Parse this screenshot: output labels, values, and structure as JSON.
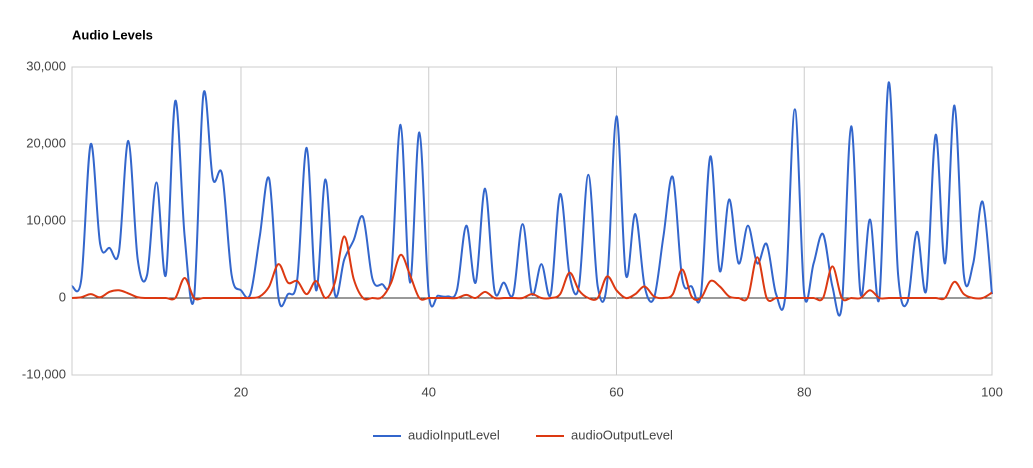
{
  "chart_data": {
    "type": "line",
    "title": "Audio Levels",
    "x": [
      2,
      3,
      4,
      5,
      6,
      7,
      8,
      9,
      10,
      11,
      12,
      13,
      14,
      15,
      16,
      17,
      18,
      19,
      20,
      21,
      22,
      23,
      24,
      25,
      26,
      27,
      28,
      29,
      30,
      31,
      32,
      33,
      34,
      35,
      36,
      37,
      38,
      39,
      40,
      41,
      42,
      43,
      44,
      45,
      46,
      47,
      48,
      49,
      50,
      51,
      52,
      53,
      54,
      55,
      56,
      57,
      58,
      59,
      60,
      61,
      62,
      63,
      64,
      65,
      66,
      67,
      68,
      69,
      70,
      71,
      72,
      73,
      74,
      75,
      76,
      77,
      78,
      79,
      80,
      81,
      82,
      83,
      84,
      85,
      86,
      87,
      88,
      89,
      90,
      91,
      92,
      93,
      94,
      95,
      96,
      97,
      98,
      99,
      100
    ],
    "series": [
      {
        "name": "audioInputLevel",
        "color": "#3366cc",
        "values": [
          1500,
          2500,
          20000,
          7000,
          6500,
          6000,
          20400,
          5000,
          3000,
          15000,
          3000,
          25600,
          8000,
          0,
          26500,
          15500,
          16000,
          3000,
          1000,
          500,
          8000,
          15500,
          0,
          500,
          2500,
          19500,
          1000,
          15400,
          500,
          5000,
          7500,
          10500,
          2500,
          1800,
          3000,
          22500,
          2000,
          21500,
          500,
          300,
          200,
          1000,
          9400,
          2000,
          14200,
          1000,
          2000,
          500,
          9600,
          500,
          4400,
          500,
          13500,
          3000,
          1500,
          16000,
          1500,
          2000,
          23600,
          3000,
          10900,
          1500,
          0,
          8000,
          15700,
          2500,
          1500,
          500,
          18400,
          3500,
          12800,
          4500,
          9400,
          4500,
          7000,
          500,
          500,
          24500,
          500,
          4500,
          8300,
          1500,
          -1000,
          22300,
          500,
          10200,
          0,
          28000,
          3000,
          -500,
          8600,
          1000,
          21200,
          4500,
          25000,
          3000,
          4500,
          12500,
          500
        ]
      },
      {
        "name": "audioOutputLevel",
        "color": "#dc3912",
        "values": [
          0,
          100,
          500,
          100,
          800,
          1000,
          600,
          100,
          0,
          0,
          0,
          0,
          2600,
          0,
          0,
          0,
          0,
          0,
          0,
          0,
          200,
          1500,
          4400,
          2000,
          2200,
          500,
          2200,
          0,
          2000,
          8000,
          2500,
          0,
          0,
          100,
          2000,
          5600,
          3000,
          0,
          0,
          0,
          0,
          0,
          400,
          0,
          800,
          0,
          0,
          0,
          0,
          500,
          0,
          0,
          500,
          3300,
          1000,
          0,
          0,
          2800,
          1000,
          0,
          500,
          1500,
          200,
          0,
          500,
          3700,
          200,
          0,
          2200,
          1500,
          200,
          0,
          100,
          5300,
          0,
          0,
          0,
          0,
          0,
          0,
          0,
          4100,
          0,
          0,
          0,
          1000,
          0,
          0,
          0,
          0,
          0,
          0,
          0,
          0,
          2100,
          500,
          0,
          0,
          700
        ]
      }
    ],
    "xlim": [
      2,
      100
    ],
    "xticks": [
      20,
      40,
      60,
      80,
      100
    ],
    "ylim": [
      -10000,
      30000
    ],
    "yticks": [
      {
        "value": -10000,
        "label": "-10,000"
      },
      0,
      {
        "value": 10000,
        "label": "10,000"
      },
      {
        "value": 20000,
        "label": "20,000"
      },
      {
        "value": 30000,
        "label": "30,000"
      }
    ],
    "grid": true,
    "legend": "bottom"
  }
}
